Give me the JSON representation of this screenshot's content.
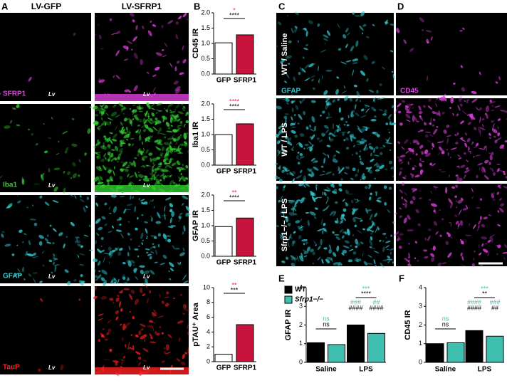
{
  "panels": {
    "a": {
      "letter": "A",
      "columns": [
        "LV-GFP",
        "LV-SFRP1"
      ],
      "region": "Lv",
      "rows": [
        {
          "label": "SFRP1",
          "color": "#e040e0"
        },
        {
          "label": "Iba1",
          "color": "#30d030"
        },
        {
          "label": "GFAP",
          "color": "#30c8d0"
        },
        {
          "label": "TauP",
          "color": "#ff2020"
        }
      ]
    },
    "b": {
      "letter": "B"
    },
    "c": {
      "letter": "C",
      "stain": "GFAP",
      "color": "#30c8d0",
      "rows": [
        "WT / Saline",
        "WT / LPS",
        "Sfrp1−/− / LPS"
      ]
    },
    "d": {
      "letter": "D",
      "stain": "CD45",
      "color": "#e040e0"
    },
    "e": {
      "letter": "E"
    },
    "f": {
      "letter": "F"
    }
  },
  "chart_data": [
    {
      "type": "bar",
      "y_label": "CD45 IR",
      "categories": [
        "GFP",
        "SFRP1"
      ],
      "values": [
        1.02,
        1.28
      ],
      "colors": [
        "#ffffff",
        "#c8143c"
      ],
      "ylim": [
        0,
        2
      ],
      "yticks": [
        {
          "value": 0,
          "label": "0.0"
        },
        {
          "value": 0.5,
          "label": "0.5"
        },
        {
          "value": 1,
          "label": "1.0"
        },
        {
          "value": 1.5,
          "label": "1.5"
        },
        {
          "value": 2,
          "label": "2.0"
        }
      ],
      "annotations": [
        {
          "text": "*",
          "color": "#e0245e"
        },
        {
          "text": "****",
          "color": "#000000"
        }
      ]
    },
    {
      "type": "bar",
      "y_label": "Iba1 IR",
      "categories": [
        "GFP",
        "SFRP1"
      ],
      "values": [
        1.0,
        1.35
      ],
      "colors": [
        "#ffffff",
        "#c8143c"
      ],
      "ylim": [
        0,
        2
      ],
      "yticks": [
        {
          "value": 0,
          "label": "0.0"
        },
        {
          "value": 0.5,
          "label": "0.5"
        },
        {
          "value": 1,
          "label": "1.0"
        },
        {
          "value": 1.5,
          "label": "1.5"
        },
        {
          "value": 2,
          "label": "2.0"
        }
      ],
      "annotations": [
        {
          "text": "****",
          "color": "#e0245e"
        },
        {
          "text": "****",
          "color": "#000000"
        }
      ]
    },
    {
      "type": "bar",
      "y_label": "GFAP IR",
      "categories": [
        "GFP",
        "SFRP1"
      ],
      "values": [
        0.97,
        1.25
      ],
      "colors": [
        "#ffffff",
        "#c8143c"
      ],
      "ylim": [
        0,
        2
      ],
      "yticks": [
        {
          "value": 0,
          "label": "0.0"
        },
        {
          "value": 0.5,
          "label": "0.5"
        },
        {
          "value": 1,
          "label": "1.0"
        },
        {
          "value": 1.5,
          "label": "1.5"
        },
        {
          "value": 2,
          "label": "2.0"
        }
      ],
      "annotations": [
        {
          "text": "**",
          "color": "#e0245e"
        },
        {
          "text": "****",
          "color": "#000000"
        }
      ]
    },
    {
      "type": "bar",
      "y_label": "pTAU⁺ Area",
      "categories": [
        "GFP",
        "SFRP1"
      ],
      "values": [
        1.0,
        5.0
      ],
      "colors": [
        "#ffffff",
        "#c8143c"
      ],
      "ylim": [
        0,
        10
      ],
      "yticks": [
        0,
        2,
        4,
        6,
        8,
        10
      ],
      "annotations": [
        {
          "text": "**",
          "color": "#e0245e"
        },
        {
          "text": "***",
          "color": "#000000"
        }
      ]
    },
    {
      "type": "grouped_bar",
      "y_label": "GFAP IR",
      "categories": [
        "Saline",
        "LPS"
      ],
      "legend": true,
      "series": [
        {
          "name": "WT",
          "color": "#000000",
          "values": [
            1.05,
            2.0
          ]
        },
        {
          "name": "Sfrp1−/−",
          "color": "#3fbfb0",
          "values": [
            0.95,
            1.55
          ]
        }
      ],
      "ylim": [
        0,
        4
      ],
      "yticks": [
        0,
        1,
        2,
        3,
        4
      ],
      "annotations": [
        {
          "text": "ns",
          "color": "#3fbfb0"
        },
        {
          "text": "ns",
          "color": "#000000"
        },
        {
          "text": "***",
          "color": "#3fbfb0"
        },
        {
          "text": "****",
          "color": "#000000"
        },
        {
          "text": "###",
          "color": "#3fbfb0"
        },
        {
          "text": "####",
          "color": "#000000"
        },
        {
          "text": "##",
          "color": "#3fbfb0"
        },
        {
          "text": "####",
          "color": "#000000"
        }
      ]
    },
    {
      "type": "grouped_bar",
      "y_label": "CD45 IR",
      "categories": [
        "Saline",
        "LPS"
      ],
      "legend": false,
      "series": [
        {
          "name": "WT",
          "color": "#000000",
          "values": [
            1.0,
            1.7
          ]
        },
        {
          "name": "Sfrp1−/−",
          "color": "#3fbfb0",
          "values": [
            1.05,
            1.4
          ]
        }
      ],
      "ylim": [
        0,
        4
      ],
      "yticks": [
        0,
        1,
        2,
        3,
        4
      ],
      "annotations": [
        {
          "text": "ns",
          "color": "#3fbfb0"
        },
        {
          "text": "ns",
          "color": "#000000"
        },
        {
          "text": "***",
          "color": "#3fbfb0"
        },
        {
          "text": "**",
          "color": "#000000"
        },
        {
          "text": "####",
          "color": "#3fbfb0"
        },
        {
          "text": "####",
          "color": "#000000"
        },
        {
          "text": "###",
          "color": "#3fbfb0"
        },
        {
          "text": "##",
          "color": "#000000"
        }
      ]
    }
  ]
}
